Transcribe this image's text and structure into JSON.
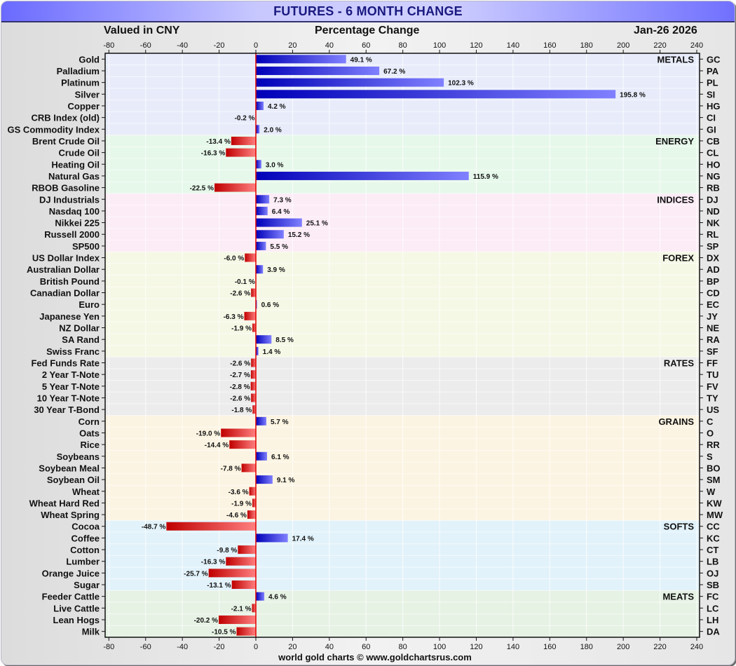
{
  "header": {
    "title": "FUTURES - 6 MONTH CHANGE",
    "currency": "Valued in CNY",
    "axis_title": "Percentage Change",
    "date": "Jan-26  2026"
  },
  "footer": "world gold charts © www.goldchartsrus.com",
  "colors": {
    "positive_dark": "#0000b8",
    "positive_light": "#8080ff",
    "negative_dark": "#c00000",
    "negative_light": "#ff8080",
    "zero_line": "#e00000"
  },
  "chart_data": {
    "type": "bar",
    "orientation": "horizontal",
    "title": "FUTURES - 6 MONTH CHANGE",
    "xlabel": "Percentage Change",
    "xlim": [
      -80,
      240
    ],
    "xticks": [
      -80,
      -60,
      -40,
      -20,
      0,
      20,
      40,
      60,
      80,
      100,
      120,
      140,
      160,
      180,
      200,
      220,
      240
    ],
    "grid": true,
    "value_suffix": " %",
    "sectors": [
      {
        "name": "METALS",
        "bg": "#e8ecfa",
        "items": [
          {
            "label": "Gold",
            "code": "GC",
            "value": 49.1
          },
          {
            "label": "Palladium",
            "code": "PA",
            "value": 67.2
          },
          {
            "label": "Platinum",
            "code": "PL",
            "value": 102.3
          },
          {
            "label": "Silver",
            "code": "SI",
            "value": 195.8
          },
          {
            "label": "Copper",
            "code": "HG",
            "value": 4.2
          },
          {
            "label": "CRB Index (old)",
            "code": "CI",
            "value": -0.2
          },
          {
            "label": "GS Commodity Index",
            "code": "GI",
            "value": 2.0
          }
        ]
      },
      {
        "name": "ENERGY",
        "bg": "#e6f8ea",
        "items": [
          {
            "label": "Brent Crude Oil",
            "code": "CB",
            "value": -13.4
          },
          {
            "label": "Crude Oil",
            "code": "CL",
            "value": -16.3
          },
          {
            "label": "Heating Oil",
            "code": "HO",
            "value": 3.0
          },
          {
            "label": "Natural Gas",
            "code": "NG",
            "value": 115.9
          },
          {
            "label": "RBOB Gasoline",
            "code": "RB",
            "value": -22.5
          }
        ]
      },
      {
        "name": "INDICES",
        "bg": "#fcecf6",
        "items": [
          {
            "label": "DJ Industrials",
            "code": "DJ",
            "value": 7.3
          },
          {
            "label": "Nasdaq 100",
            "code": "ND",
            "value": 6.4
          },
          {
            "label": "Nikkei 225",
            "code": "NK",
            "value": 25.1
          },
          {
            "label": "Russell 2000",
            "code": "RL",
            "value": 15.2
          },
          {
            "label": "SP500",
            "code": "SP",
            "value": 5.5
          }
        ]
      },
      {
        "name": "FOREX",
        "bg": "#f6f8e6",
        "items": [
          {
            "label": "US Dollar Index",
            "code": "DX",
            "value": -6.0
          },
          {
            "label": "Australian Dollar",
            "code": "AD",
            "value": 3.9
          },
          {
            "label": "British Pound",
            "code": "BP",
            "value": -0.1
          },
          {
            "label": "Canadian Dollar",
            "code": "CD",
            "value": -2.6
          },
          {
            "label": "Euro",
            "code": "EC",
            "value": 0.6
          },
          {
            "label": "Japanese Yen",
            "code": "JY",
            "value": -6.3
          },
          {
            "label": "NZ Dollar",
            "code": "NE",
            "value": -1.9
          },
          {
            "label": "SA Rand",
            "code": "RA",
            "value": 8.5
          },
          {
            "label": "Swiss Franc",
            "code": "SF",
            "value": 1.4
          }
        ]
      },
      {
        "name": "RATES",
        "bg": "#ececec",
        "items": [
          {
            "label": "Fed Funds Rate",
            "code": "FF",
            "value": -2.6
          },
          {
            "label": "2 Year T-Note",
            "code": "TU",
            "value": -2.7
          },
          {
            "label": "5 Year T-Note",
            "code": "FV",
            "value": -2.8
          },
          {
            "label": "10 Year T-Note",
            "code": "TY",
            "value": -2.6
          },
          {
            "label": "30 Year T-Bond",
            "code": "US",
            "value": -1.8
          }
        ]
      },
      {
        "name": "GRAINS",
        "bg": "#fcf4e2",
        "items": [
          {
            "label": "Corn",
            "code": "C",
            "value": 5.7
          },
          {
            "label": "Oats",
            "code": "O",
            "value": -19.0
          },
          {
            "label": "Rice",
            "code": "RR",
            "value": -14.4
          },
          {
            "label": "Soybeans",
            "code": "S",
            "value": 6.1
          },
          {
            "label": "Soybean Meal",
            "code": "BO",
            "value": -7.8
          },
          {
            "label": "Soybean Oil",
            "code": "SM",
            "value": 9.1
          },
          {
            "label": "Wheat",
            "code": "W",
            "value": -3.6
          },
          {
            "label": "Wheat Hard Red",
            "code": "KW",
            "value": -1.9
          },
          {
            "label": "Wheat Spring",
            "code": "MW",
            "value": -4.6
          }
        ]
      },
      {
        "name": "SOFTS",
        "bg": "#e2f2fa",
        "items": [
          {
            "label": "Cocoa",
            "code": "CC",
            "value": -48.7
          },
          {
            "label": "Coffee",
            "code": "KC",
            "value": 17.4
          },
          {
            "label": "Cotton",
            "code": "CT",
            "value": -9.8
          },
          {
            "label": "Lumber",
            "code": "LB",
            "value": -16.3
          },
          {
            "label": "Orange Juice",
            "code": "OJ",
            "value": -25.7
          },
          {
            "label": "Sugar",
            "code": "SB",
            "value": -13.1
          }
        ]
      },
      {
        "name": "MEATS",
        "bg": "#e6f2e4",
        "items": [
          {
            "label": "Feeder Cattle",
            "code": "FC",
            "value": 4.6
          },
          {
            "label": "Live Cattle",
            "code": "LC",
            "value": -2.1
          },
          {
            "label": "Lean Hogs",
            "code": "LH",
            "value": -20.2
          },
          {
            "label": "Milk",
            "code": "DA",
            "value": -10.5
          }
        ]
      }
    ]
  }
}
